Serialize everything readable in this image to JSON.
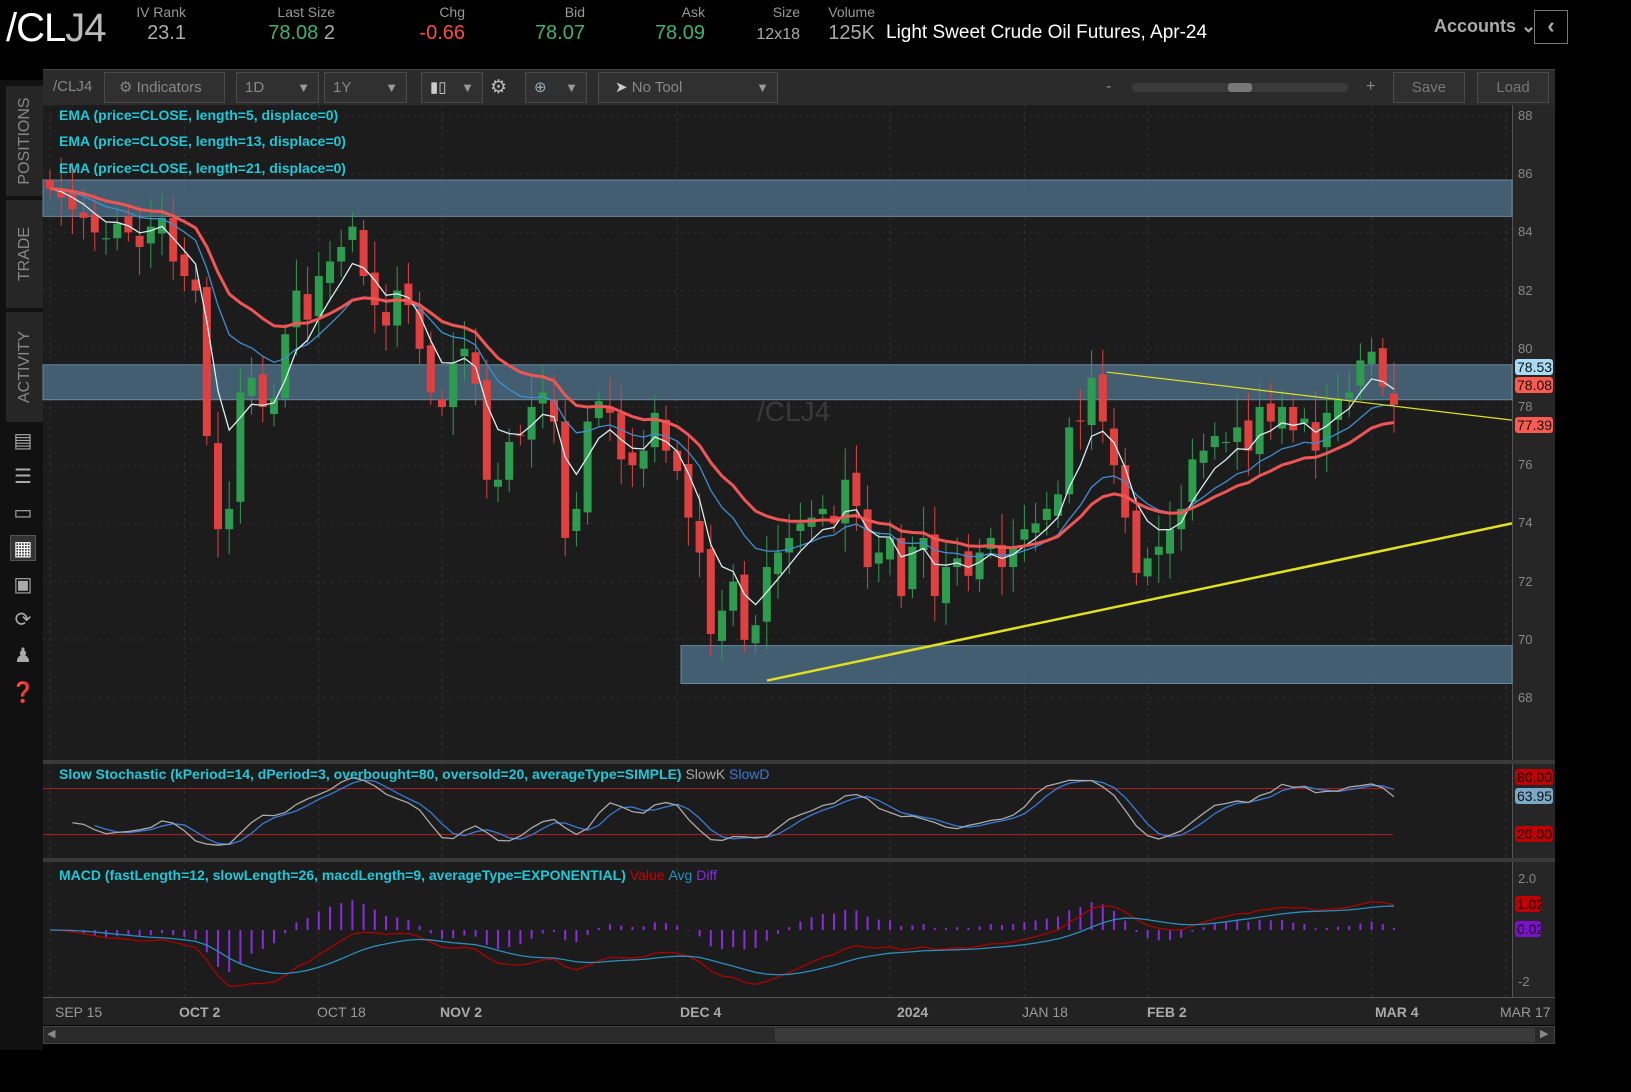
{
  "header": {
    "symbol_main": "/CL",
    "symbol_suffix": "J4",
    "description": "Light Sweet Crude Oil Futures, Apr-24",
    "quotes": [
      {
        "label": "IV Rank",
        "value": "23.1",
        "color": "neutral"
      },
      {
        "label": "Last Size",
        "value": "78.08",
        "extra": "2",
        "color": "green"
      },
      {
        "label": "Chg",
        "value": "-0.66",
        "color": "red"
      },
      {
        "label": "Bid",
        "value": "78.07",
        "color": "green"
      },
      {
        "label": "Ask",
        "value": "78.09",
        "color": "green"
      },
      {
        "label": "Size",
        "value": "12x18",
        "color": "neutral"
      },
      {
        "label": "Volume",
        "value": "125K",
        "color": "neutral"
      }
    ],
    "accounts": "Accounts"
  },
  "sidebar": {
    "tabs": [
      "POSITIONS",
      "TRADE",
      "ACTIVITY"
    ],
    "icons": [
      "chart-report-icon",
      "list-icon",
      "tv-icon",
      "chart-grid-icon",
      "layout-icon",
      "history-icon",
      "community-icon",
      "help-icon"
    ]
  },
  "toolbar": {
    "symbol": "/CLJ4",
    "indicators": "Indicators",
    "interval": "1D",
    "range": "1Y",
    "tool": "No Tool",
    "zoom_minus": "-",
    "zoom_plus": "+",
    "zoom_level": 0.5,
    "save": "Save",
    "load": "Load"
  },
  "chart": {
    "watermark": "/CLJ4",
    "studies": [
      "EMA (price=CLOSE, length=5, displace=0)",
      "EMA (price=CLOSE, length=13, displace=0)",
      "EMA (price=CLOSE, length=21, displace=0)"
    ],
    "colors": {
      "up": "#2e9c4f",
      "down": "#e04040",
      "ema5": "#d8eef0",
      "ema13": "#3d8fd0",
      "ema21": "#f05555",
      "zone": "#4a6a80",
      "trend": "#e0e020"
    },
    "price_ticks": [
      "88",
      "86",
      "84",
      "82",
      "80",
      "78",
      "76",
      "74",
      "72",
      "70",
      "68"
    ],
    "price_labels": [
      {
        "value": "78.53",
        "color": "#a8dcf5"
      },
      {
        "value": "78.08",
        "color": "#ff5a50"
      },
      {
        "value": "77.39",
        "color": "#ff5a50"
      }
    ],
    "closes": [
      85.5,
      85.2,
      84.8,
      84.5,
      84.0,
      83.8,
      84.3,
      84.0,
      83.5,
      84.2,
      84.5,
      83.0,
      82.5,
      82.0,
      77.0,
      73.8,
      74.5,
      78.5,
      79.0,
      78.0,
      78.3,
      80.5,
      82.0,
      81.0,
      82.5,
      83.0,
      83.5,
      84.2,
      82.5,
      81.5,
      80.8,
      82.0,
      81.5,
      80.0,
      78.5,
      78.0,
      79.5,
      80.0,
      78.8,
      75.5,
      75.5,
      76.8,
      77.0,
      78.0,
      78.5,
      77.5,
      73.5,
      74.5,
      77.5,
      78.2,
      77.8,
      76.2,
      76.0,
      76.5,
      77.8,
      76.5,
      75.8,
      74.2,
      73.0,
      70.2,
      71.0,
      72.0,
      70.0,
      70.5,
      72.5,
      73.0,
      73.5,
      74.0,
      74.2,
      74.5,
      74.0,
      75.5,
      74.6,
      72.5,
      73.0,
      73.5,
      71.5,
      73.2,
      73.5,
      71.5,
      72.5,
      72.8,
      72.2,
      73.0,
      73.5,
      72.5,
      73.2,
      73.8,
      74.0,
      74.5,
      75.0,
      77.3,
      77.5,
      79.0,
      77.5,
      76.0,
      74.2,
      72.3,
      72.8,
      73.2,
      73.8,
      74.5,
      76.2,
      76.5,
      77.0,
      76.8,
      77.3,
      76.5,
      78.0,
      77.5,
      78.0,
      77.2,
      77.6,
      76.5,
      77.8,
      78.3,
      78.5,
      79.6,
      79.9,
      78.7,
      78.08
    ],
    "zones": [
      {
        "from": 84.55,
        "to": 85.8
      },
      {
        "from": 78.25,
        "to": 79.45
      },
      {
        "from": 68.5,
        "to": 69.8
      }
    ],
    "trendlines": [
      {
        "from": 68.6,
        "to": 74.0
      },
      {
        "from": 79.2,
        "to": 77.55
      }
    ]
  },
  "stochastic": {
    "title": "Slow Stochastic (kPeriod=14, dPeriod=3, overbought=80, oversold=20, averageType=SIMPLE)",
    "k_label": "SlowK",
    "d_label": "SlowD",
    "overbought": 80,
    "oversold": 20,
    "labels": [
      {
        "value": "80.00",
        "color": "#c00000"
      },
      {
        "value": "63.95",
        "color": "#7aa8c8"
      },
      {
        "value": "20.00",
        "color": "#c00000"
      }
    ]
  },
  "macd": {
    "title": "MACD (fastLength=12, slowLength=26, macdLength=9, averageType=EXPONENTIAL)",
    "value_label": "Value",
    "avg_label": "Avg",
    "diff_label": "Diff",
    "ticks": [
      "2.0",
      "-2"
    ],
    "labels": [
      {
        "value": "1.02",
        "color": "#c00000"
      },
      {
        "value": "0.02",
        "color": "#7a10c8"
      }
    ]
  },
  "dates": [
    {
      "label": "SEP 15",
      "bold": false
    },
    {
      "label": "OCT 2",
      "bold": true
    },
    {
      "label": "OCT 18",
      "bold": false
    },
    {
      "label": "NOV 2",
      "bold": true
    },
    {
      "label": "DEC 4",
      "bold": true
    },
    {
      "label": "2024",
      "bold": true
    },
    {
      "label": "JAN 18",
      "bold": false
    },
    {
      "label": "FEB 2",
      "bold": true
    },
    {
      "label": "MAR 4",
      "bold": true
    },
    {
      "label": "MAR 17",
      "bold": false
    }
  ]
}
